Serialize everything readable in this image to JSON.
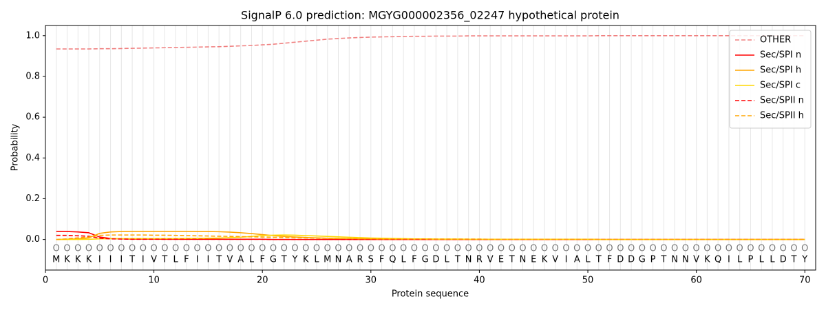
{
  "chart_data": {
    "type": "line",
    "title": "SignalP 6.0 prediction: MGYG000002356_02247 hypothetical protein",
    "xlabel": "Protein sequence",
    "ylabel": "Probability",
    "x": [
      1,
      2,
      3,
      4,
      5,
      6,
      7,
      8,
      9,
      10,
      11,
      12,
      13,
      14,
      15,
      16,
      17,
      18,
      19,
      20,
      21,
      22,
      23,
      24,
      25,
      26,
      27,
      28,
      29,
      30,
      31,
      32,
      33,
      34,
      35,
      36,
      37,
      38,
      39,
      40,
      41,
      42,
      43,
      44,
      45,
      46,
      47,
      48,
      49,
      50,
      51,
      52,
      53,
      54,
      55,
      56,
      57,
      58,
      59,
      60,
      61,
      62,
      63,
      64,
      65,
      66,
      67,
      68,
      69,
      70
    ],
    "sequence": [
      "M",
      "K",
      "K",
      "K",
      "I",
      "I",
      "I",
      "T",
      "I",
      "V",
      "T",
      "L",
      "F",
      "I",
      "I",
      "T",
      "V",
      "A",
      "L",
      "F",
      "G",
      "T",
      "Y",
      "K",
      "L",
      "M",
      "N",
      "A",
      "R",
      "S",
      "F",
      "Q",
      "L",
      "F",
      "G",
      "D",
      "L",
      "T",
      "N",
      "R",
      "V",
      "E",
      "T",
      "N",
      "E",
      "K",
      "V",
      "I",
      "A",
      "L",
      "T",
      "F",
      "D",
      "D",
      "G",
      "P",
      "T",
      "N",
      "N",
      "V",
      "K",
      "Q",
      "I",
      "L",
      "P",
      "L",
      "L",
      "D",
      "T",
      "Y"
    ],
    "predicted_labels": [
      "O",
      "O",
      "O",
      "O",
      "O",
      "O",
      "O",
      "O",
      "O",
      "O",
      "O",
      "O",
      "O",
      "O",
      "O",
      "O",
      "O",
      "O",
      "O",
      "O",
      "O",
      "O",
      "O",
      "O",
      "O",
      "O",
      "O",
      "O",
      "O",
      "O",
      "O",
      "O",
      "O",
      "O",
      "O",
      "O",
      "O",
      "O",
      "O",
      "O",
      "O",
      "O",
      "O",
      "O",
      "O",
      "O",
      "O",
      "O",
      "O",
      "O",
      "O",
      "O",
      "O",
      "O",
      "O",
      "O",
      "O",
      "O",
      "O",
      "O",
      "O",
      "O",
      "O",
      "O",
      "O",
      "O",
      "O",
      "O",
      "O",
      "O"
    ],
    "series": [
      {
        "name": "OTHER",
        "color": "#f08080",
        "dashed": true,
        "values": [
          0.935,
          0.935,
          0.935,
          0.935,
          0.936,
          0.936,
          0.937,
          0.938,
          0.939,
          0.94,
          0.941,
          0.942,
          0.943,
          0.944,
          0.945,
          0.946,
          0.948,
          0.95,
          0.952,
          0.955,
          0.958,
          0.963,
          0.968,
          0.973,
          0.978,
          0.983,
          0.986,
          0.989,
          0.991,
          0.993,
          0.994,
          0.995,
          0.996,
          0.997,
          0.997,
          0.998,
          0.998,
          0.998,
          0.999,
          0.999,
          0.999,
          0.999,
          0.999,
          0.999,
          0.999,
          0.999,
          0.999,
          0.999,
          0.999,
          0.999,
          1,
          1,
          1,
          1,
          1,
          1,
          1,
          1,
          1,
          1,
          1,
          1,
          1,
          1,
          1,
          1,
          1,
          1,
          1,
          1
        ]
      },
      {
        "name": "Sec/SPI n",
        "color": "#ff0000",
        "dashed": false,
        "values": [
          0.04,
          0.039,
          0.037,
          0.033,
          0.012,
          0.005,
          0.003,
          0.002,
          0.002,
          0.002,
          0.001,
          0.001,
          0.001,
          0.001,
          0.001,
          0.001,
          0.001,
          0.001,
          0.001,
          0.001,
          0,
          0,
          0,
          0,
          0,
          0,
          0,
          0,
          0,
          0,
          0,
          0,
          0,
          0,
          0,
          0,
          0,
          0,
          0,
          0,
          0,
          0,
          0,
          0,
          0,
          0,
          0,
          0,
          0,
          0,
          0,
          0,
          0,
          0,
          0,
          0,
          0,
          0,
          0,
          0,
          0,
          0,
          0,
          0,
          0,
          0,
          0,
          0,
          0,
          0
        ]
      },
      {
        "name": "Sec/SPI h",
        "color": "#ffa500",
        "dashed": false,
        "values": [
          0,
          0.001,
          0.003,
          0.008,
          0.03,
          0.037,
          0.039,
          0.04,
          0.04,
          0.04,
          0.04,
          0.04,
          0.04,
          0.039,
          0.039,
          0.038,
          0.036,
          0.033,
          0.029,
          0.024,
          0.019,
          0.015,
          0.012,
          0.01,
          0.008,
          0.006,
          0.005,
          0.004,
          0.003,
          0.003,
          0.002,
          0.002,
          0.002,
          0.002,
          0.002,
          0.001,
          0.001,
          0.001,
          0.001,
          0.001,
          0.001,
          0.001,
          0.001,
          0.001,
          0.001,
          0.001,
          0.001,
          0.001,
          0.001,
          0.001,
          0,
          0,
          0,
          0,
          0,
          0,
          0,
          0,
          0,
          0,
          0,
          0,
          0,
          0,
          0,
          0,
          0,
          0,
          0,
          0
        ]
      },
      {
        "name": "Sec/SPI c",
        "color": "#ffd700",
        "dashed": false,
        "values": [
          0,
          0,
          0,
          0.001,
          0.003,
          0.004,
          0.004,
          0.004,
          0.004,
          0.004,
          0.004,
          0.004,
          0.005,
          0.005,
          0.006,
          0.007,
          0.009,
          0.011,
          0.015,
          0.019,
          0.021,
          0.022,
          0.021,
          0.019,
          0.017,
          0.015,
          0.013,
          0.011,
          0.009,
          0.007,
          0.006,
          0.005,
          0.004,
          0.003,
          0.003,
          0.002,
          0.002,
          0.002,
          0.001,
          0.001,
          0.001,
          0.001,
          0.001,
          0.001,
          0.001,
          0.001,
          0.001,
          0.001,
          0.001,
          0.001,
          0,
          0,
          0,
          0,
          0,
          0,
          0,
          0,
          0,
          0,
          0,
          0,
          0,
          0,
          0,
          0,
          0,
          0,
          0,
          0
        ]
      },
      {
        "name": "Sec/SPII n",
        "color": "#ff0000",
        "dashed": true,
        "values": [
          0.02,
          0.02,
          0.018,
          0.016,
          0.006,
          0.003,
          0.002,
          0.001,
          0.001,
          0.001,
          0.001,
          0.001,
          0.001,
          0.001,
          0.001,
          0.001,
          0.001,
          0.001,
          0.001,
          0.001,
          0,
          0,
          0,
          0,
          0,
          0,
          0,
          0,
          0,
          0,
          0,
          0,
          0,
          0,
          0,
          0,
          0,
          0,
          0,
          0,
          0,
          0,
          0,
          0,
          0,
          0,
          0,
          0,
          0,
          0,
          0,
          0,
          0,
          0,
          0,
          0,
          0,
          0,
          0,
          0,
          0,
          0,
          0,
          0,
          0,
          0,
          0,
          0,
          0,
          0
        ]
      },
      {
        "name": "Sec/SPII h",
        "color": "#ffa500",
        "dashed": true,
        "values": [
          0,
          0.003,
          0.008,
          0.012,
          0.02,
          0.022,
          0.022,
          0.022,
          0.022,
          0.021,
          0.021,
          0.02,
          0.019,
          0.018,
          0.017,
          0.016,
          0.015,
          0.014,
          0.013,
          0.012,
          0.011,
          0.01,
          0.009,
          0.008,
          0.007,
          0.006,
          0.005,
          0.005,
          0.004,
          0.004,
          0.003,
          0.003,
          0.003,
          0.003,
          0.003,
          0.002,
          0.002,
          0.002,
          0.002,
          0.002,
          0.001,
          0.001,
          0.001,
          0.001,
          0.001,
          0.001,
          0.001,
          0.001,
          0.001,
          0.001,
          0,
          0,
          0,
          0,
          0,
          0,
          0,
          0,
          0,
          0,
          0,
          0,
          0,
          0,
          0,
          0,
          0,
          0,
          0,
          0
        ]
      }
    ],
    "xlim": [
      0,
      71
    ],
    "ylim": [
      -0.15,
      1.05
    ],
    "xticks": [
      0,
      10,
      20,
      30,
      40,
      50,
      60,
      70
    ],
    "yticks": [
      {
        "value": 0,
        "label": "0.0"
      },
      {
        "value": 0.2,
        "label": "0.2"
      },
      {
        "value": 0.4,
        "label": "0.4"
      },
      {
        "value": 0.6,
        "label": "0.6"
      },
      {
        "value": 0.8,
        "label": "0.8"
      },
      {
        "value": 1,
        "label": "1.0"
      }
    ],
    "legend": "upper right"
  }
}
